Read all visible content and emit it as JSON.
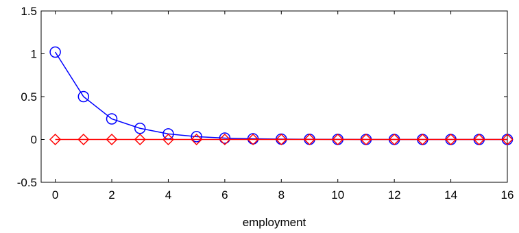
{
  "chart_data": {
    "type": "line",
    "title": "",
    "xlabel": "employment",
    "ylabel": "",
    "xlim": [
      -0.5,
      16
    ],
    "ylim": [
      -0.5,
      1.5
    ],
    "xticks": [
      0,
      2,
      4,
      6,
      8,
      10,
      12,
      14,
      16
    ],
    "yticks": [
      -0.5,
      0,
      0.5,
      1,
      1.5
    ],
    "xtick_labels": [
      "0",
      "2",
      "4",
      "6",
      "8",
      "10",
      "12",
      "14",
      "16"
    ],
    "ytick_labels": [
      "-0.5",
      "0",
      "0.5",
      "1",
      "1.5"
    ],
    "grid": false,
    "x": [
      0,
      1,
      2,
      3,
      4,
      5,
      6,
      7,
      8,
      9,
      10,
      11,
      12,
      13,
      14,
      15,
      16
    ],
    "series": [
      {
        "color": "#0000ff",
        "marker": "circle",
        "values": [
          1.02,
          0.5,
          0.24,
          0.13,
          0.065,
          0.033,
          0.016,
          0.008,
          0.004,
          0.002,
          0.001,
          0.0005,
          0.0003,
          0.0001,
          0.0001,
          0.0,
          0.0
        ]
      },
      {
        "color": "#ff0000",
        "marker": "diamond",
        "values": [
          0,
          0,
          0,
          0,
          0,
          0,
          0,
          0,
          0,
          0,
          0,
          0,
          0,
          0,
          0,
          0,
          0
        ]
      }
    ]
  }
}
